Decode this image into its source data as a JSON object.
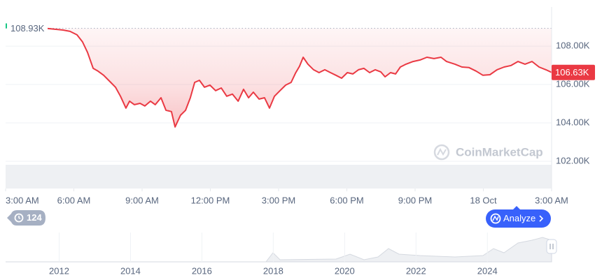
{
  "chart_data": {
    "type": "line",
    "x": [
      1.75,
      2.52,
      2.83,
      3.14,
      3.38,
      3.6,
      3.85,
      4.06,
      4.31,
      4.62,
      4.83,
      5.05,
      5.29,
      5.45,
      5.66,
      5.91,
      6.12,
      6.37,
      6.58,
      6.83,
      7.05,
      7.29,
      7.45,
      7.69,
      7.91,
      8.12,
      8.31,
      8.52,
      8.74,
      8.98,
      9.23,
      9.48,
      9.72,
      9.97,
      10.22,
      10.46,
      10.68,
      10.89,
      11.14,
      11.38,
      11.6,
      11.82,
      12.06,
      12.31,
      12.55,
      12.74,
      12.92,
      13.08,
      13.29,
      13.54,
      13.78,
      14.03,
      14.28,
      14.52,
      14.77,
      15.02,
      15.26,
      15.51,
      15.75,
      16.0,
      16.25,
      16.49,
      16.68,
      16.92,
      17.14,
      17.35,
      17.6,
      17.91,
      18.22,
      18.52,
      18.83,
      19.14,
      19.38,
      19.75,
      20.06,
      20.37,
      20.68,
      20.98,
      21.29,
      21.6,
      21.91,
      22.22,
      22.52,
      22.83,
      23.14,
      23.45,
      23.75,
      24
    ],
    "series": [
      {
        "color": "#ea3943",
        "values": [
          108930,
          108840,
          108770,
          108590,
          108220,
          107680,
          106840,
          106700,
          106480,
          106110,
          105860,
          105390,
          104770,
          105130,
          104950,
          105020,
          104880,
          105130,
          104950,
          105310,
          104660,
          104590,
          103790,
          104400,
          104660,
          105310,
          106110,
          106220,
          105860,
          105970,
          105680,
          105820,
          105390,
          105500,
          105130,
          105750,
          105310,
          105600,
          105240,
          105310,
          104770,
          105390,
          105680,
          105970,
          106110,
          106590,
          106950,
          107420,
          107060,
          106770,
          106620,
          106770,
          106620,
          106480,
          106330,
          106620,
          106550,
          106770,
          106840,
          106620,
          106770,
          106660,
          106400,
          106620,
          106550,
          106910,
          107060,
          107200,
          107280,
          107420,
          107350,
          107420,
          107200,
          107060,
          106910,
          106880,
          106700,
          106480,
          106510,
          106770,
          106910,
          106990,
          107200,
          107060,
          107200,
          106910,
          106770,
          106630
        ]
      }
    ],
    "xlim": [
      0,
      24
    ],
    "xticks": [
      {
        "value": 0,
        "label": "3:00 AM"
      },
      {
        "value": 3,
        "label": "6:00 AM"
      },
      {
        "value": 6,
        "label": "9:00 AM"
      },
      {
        "value": 9,
        "label": "12:00 PM"
      },
      {
        "value": 12,
        "label": "3:00 PM"
      },
      {
        "value": 15,
        "label": "6:00 PM"
      },
      {
        "value": 18,
        "label": "9:00 PM"
      },
      {
        "value": 21,
        "label": "18 Oct"
      },
      {
        "value": 24,
        "label": "3:00 AM"
      }
    ],
    "ylim": [
      100580,
      110040
    ],
    "yticks": [
      {
        "value": 102000,
        "label": "102.00K"
      },
      {
        "value": 104000,
        "label": "104.00K"
      },
      {
        "value": 106000,
        "label": "106.00K"
      },
      {
        "value": 108000,
        "label": "108.00K"
      }
    ],
    "grid": true,
    "start_price": {
      "value": 108930,
      "label": "108.93K"
    },
    "last_price": {
      "value": 106630,
      "label": "106.63K"
    },
    "watermark": "CoinMarketCap"
  },
  "controls": {
    "history_count": "124",
    "analyze_button": "Analyze"
  },
  "navigator": {
    "xlim": [
      2010.5,
      2025.8
    ],
    "xticks": [
      2012,
      2014,
      2016,
      2018,
      2020,
      2022,
      2024
    ]
  }
}
